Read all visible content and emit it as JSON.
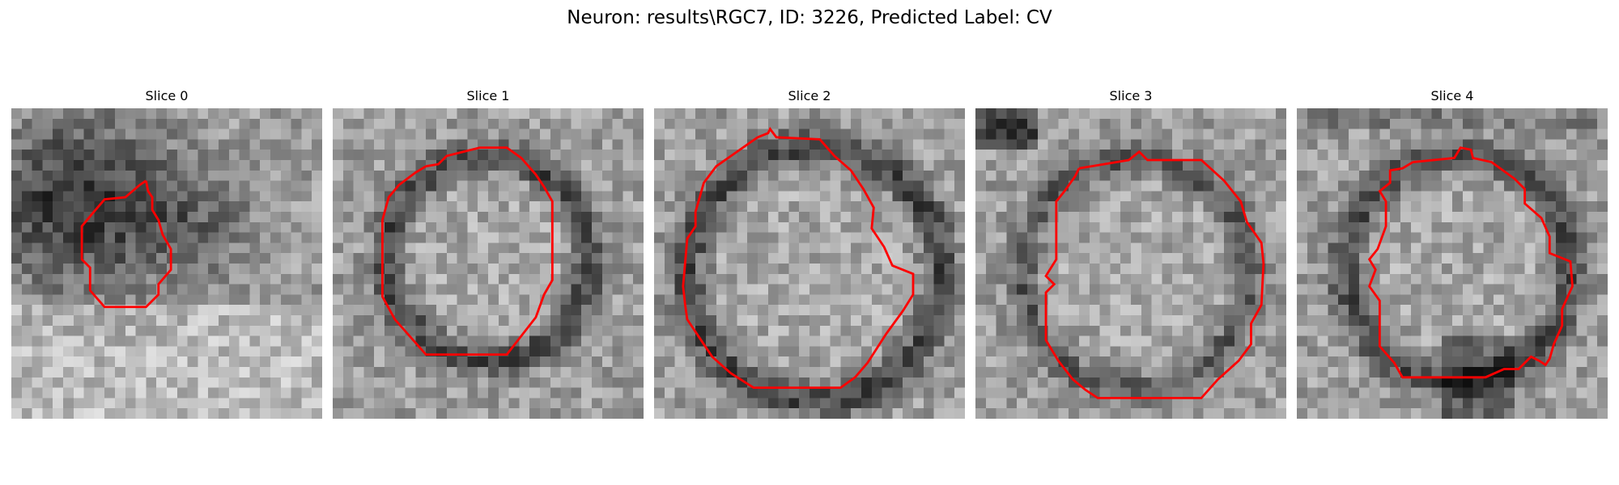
{
  "figure": {
    "title": "Neuron: results\\RGC7, ID: 3226, Predicted Label: CV"
  },
  "panels": [
    {
      "title": "Slice 0",
      "contour_color": "#ff0000"
    },
    {
      "title": "Slice 1",
      "contour_color": "#ff0000"
    },
    {
      "title": "Slice 2",
      "contour_color": "#ff0000"
    },
    {
      "title": "Slice 3",
      "contour_color": "#ff0000"
    },
    {
      "title": "Slice 4",
      "contour_color": "#ff0000"
    }
  ]
}
